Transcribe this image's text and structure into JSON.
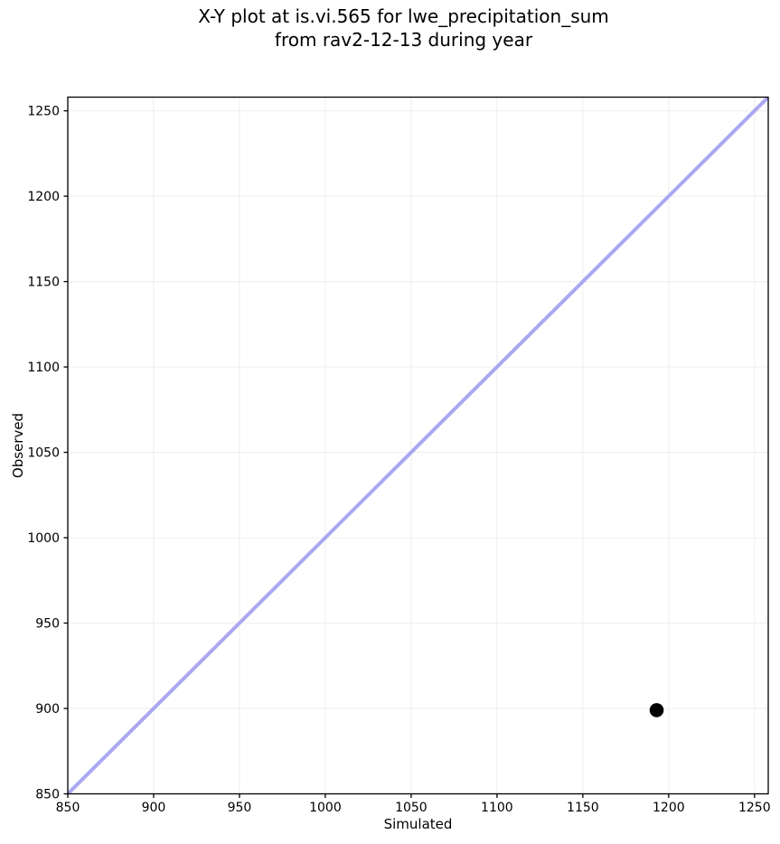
{
  "chart_data": {
    "type": "scatter",
    "title_lines": [
      "X-Y plot at is.vi.565 for lwe_precipitation_sum",
      "from rav2-12-13 during year"
    ],
    "xlabel": "Simulated",
    "ylabel": "Observed",
    "xlim": [
      850,
      1258
    ],
    "ylim": [
      850,
      1258
    ],
    "xticks": [
      850,
      900,
      950,
      1000,
      1050,
      1100,
      1150,
      1200,
      1250
    ],
    "yticks": [
      850,
      900,
      950,
      1000,
      1050,
      1100,
      1150,
      1200,
      1250
    ],
    "grid": true,
    "legend": false,
    "points": [
      {
        "x": 1193,
        "y": 899
      }
    ],
    "identity_line": {
      "from": 850,
      "to": 1258,
      "color": "#a9a8f0",
      "width": 4
    },
    "marker": {
      "color": "#000000",
      "radius": 7.8
    },
    "colors": {
      "grid": "#f0f0f0",
      "spine": "#000000",
      "text": "#000000",
      "background": "#ffffff"
    }
  }
}
